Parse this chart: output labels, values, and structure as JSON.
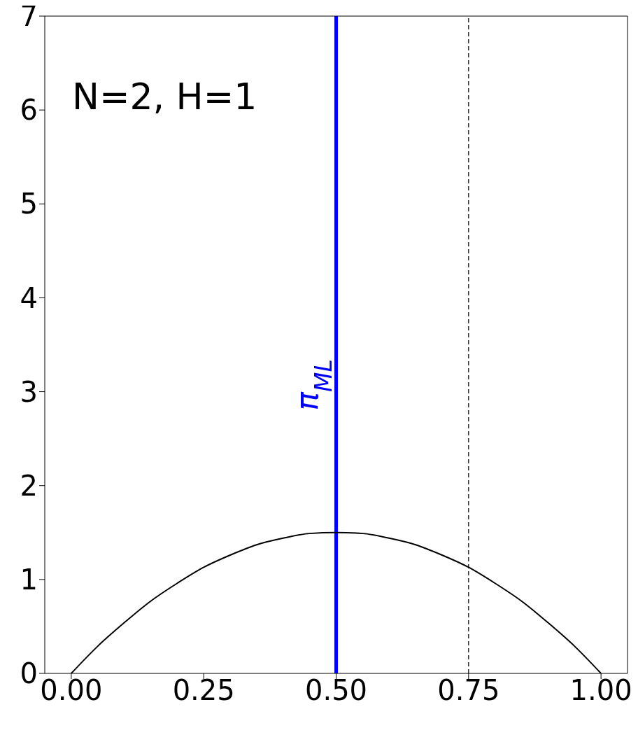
{
  "chart_data": {
    "type": "line",
    "x": [
      0,
      0.05,
      0.1,
      0.15,
      0.2,
      0.25,
      0.3,
      0.35,
      0.4,
      0.45,
      0.5,
      0.55,
      0.6,
      0.65,
      0.7,
      0.75,
      0.8,
      0.85,
      0.9,
      0.95,
      1
    ],
    "series": [
      {
        "color": "#000000",
        "values": [
          0,
          0.29,
          0.54,
          0.77,
          0.96,
          1.13,
          1.26,
          1.37,
          1.44,
          1.49,
          1.5,
          1.49,
          1.44,
          1.37,
          1.26,
          1.13,
          0.96,
          0.77,
          0.54,
          0.29,
          0
        ]
      }
    ],
    "xlim": [
      -0.05,
      1.05
    ],
    "ylim": [
      0,
      7
    ],
    "xticks": [
      {
        "value": 0,
        "label": "0.00"
      },
      {
        "value": 0.25,
        "label": "0.25"
      },
      {
        "value": 0.5,
        "label": "0.50"
      },
      {
        "value": 0.75,
        "label": "0.75"
      },
      {
        "value": 1,
        "label": "1.00"
      }
    ],
    "yticks": [
      0,
      1,
      2,
      3,
      4,
      5,
      6,
      7
    ],
    "ref_lines": [
      {
        "axis": "x",
        "value": 0.5,
        "label": "π$_{ML}$",
        "color": "#0000ff",
        "line_style": "solid"
      },
      {
        "axis": "x",
        "value": 0.75,
        "color": "#000000",
        "line_style": "dashed"
      }
    ],
    "annotations": [
      "N=2, H=1"
    ],
    "grid": false
  }
}
